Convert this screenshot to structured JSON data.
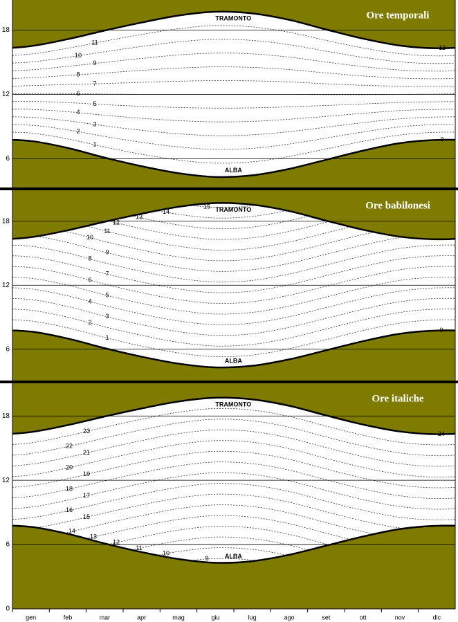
{
  "chart_data": [
    {
      "type": "hour-lines",
      "title": "Ore temporali",
      "hour_rule": "temporal",
      "color": "#7f7b00",
      "series": [
        {
          "name": "ALBA",
          "values": [
            7.65,
            7.0,
            6.1,
            5.3,
            4.65,
            4.3,
            4.45,
            5.05,
            5.9,
            6.75,
            7.45,
            7.75
          ]
        },
        {
          "name": "TRAMONTO",
          "values": [
            16.5,
            17.15,
            17.95,
            18.7,
            19.35,
            19.7,
            19.55,
            18.95,
            18.05,
            17.2,
            16.55,
            16.3
          ]
        }
      ],
      "hours": [
        0,
        1,
        2,
        3,
        4,
        5,
        6,
        7,
        8,
        9,
        10,
        11,
        12
      ],
      "ylim": [
        3.25,
        20.8
      ],
      "yticks": [
        6,
        12,
        18
      ],
      "grid": true
    },
    {
      "type": "hour-lines",
      "title": "Ore babilonesi",
      "hour_rule": "babylonian",
      "color": "#7f7b00",
      "series": [
        {
          "name": "ALBA",
          "values": [
            7.65,
            7.0,
            6.1,
            5.3,
            4.65,
            4.3,
            4.45,
            5.05,
            5.9,
            6.75,
            7.45,
            7.75
          ]
        },
        {
          "name": "TRAMONTO",
          "values": [
            16.5,
            17.15,
            17.95,
            18.7,
            19.35,
            19.7,
            19.55,
            18.95,
            18.05,
            17.2,
            16.55,
            16.3
          ]
        }
      ],
      "hours": [
        0,
        1,
        2,
        3,
        4,
        5,
        6,
        7,
        8,
        9,
        10,
        11,
        12,
        13,
        14,
        15
      ],
      "ylim": [
        3.0,
        20.9
      ],
      "yticks": [
        6,
        12,
        18
      ],
      "grid": true
    },
    {
      "type": "hour-lines",
      "title": "Ore italiche",
      "hour_rule": "italian",
      "color": "#7f7b00",
      "categories": [
        "gen",
        "feb",
        "mar",
        "apr",
        "mag",
        "giu",
        "lug",
        "ago",
        "set",
        "ott",
        "nov",
        "dic"
      ],
      "series": [
        {
          "name": "ALBA",
          "values": [
            7.65,
            7.0,
            6.1,
            5.3,
            4.65,
            4.3,
            4.45,
            5.05,
            5.9,
            6.75,
            7.45,
            7.75
          ]
        },
        {
          "name": "TRAMONTO",
          "values": [
            16.5,
            17.15,
            17.95,
            18.7,
            19.35,
            19.7,
            19.55,
            18.95,
            18.05,
            17.2,
            16.55,
            16.3
          ]
        }
      ],
      "hours": [
        9,
        10,
        11,
        12,
        13,
        14,
        15,
        16,
        17,
        18,
        19,
        20,
        21,
        22,
        23,
        24
      ],
      "ylim": [
        0,
        21.05
      ],
      "yticks": [
        0,
        6,
        12,
        18
      ],
      "grid": true
    }
  ]
}
